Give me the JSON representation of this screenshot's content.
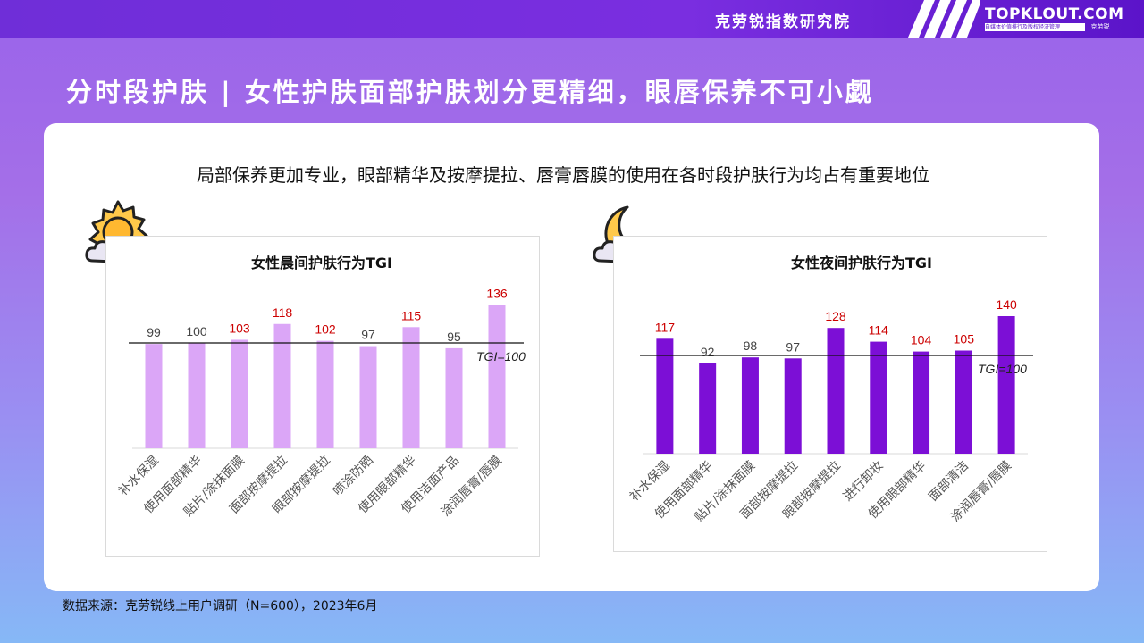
{
  "header": {
    "brand_cn": "克劳锐指数研究院",
    "logo": "TOPKLOUT.COM",
    "logo_tagline": "自媒体价值排行及版权经济管理",
    "logo_sub": "克劳锐"
  },
  "page_title": "分时段护肤 | 女性护肤面部护肤划分更精细，眼唇保养不可小觑",
  "subtitle": "局部保养更加专业，眼部精华及按摩提拉、唇膏唇膜的使用在各时段护肤行为均占有重要地位",
  "icons": {
    "morning": "sun-cloud-icon",
    "night": "moon-cloud-icon"
  },
  "colors": {
    "morning_bar": "#dba6f7",
    "night_bar": "#7c0fd6",
    "highlight_label": "#cc0000",
    "normal_label": "#444444",
    "baseline": "#111111"
  },
  "chart_data": [
    {
      "type": "bar",
      "title": "女性晨间护肤行为TGI",
      "categories": [
        "补水保湿",
        "使用面部精华",
        "贴片/涂抹面膜",
        "面部按摩提拉",
        "眼部按摩提拉",
        "喷涂防晒",
        "使用眼部精华",
        "使用洁面产品",
        "涂润唇膏/唇膜"
      ],
      "values": [
        99,
        100,
        103,
        118,
        102,
        97,
        115,
        95,
        136
      ],
      "highlighted": [
        false,
        false,
        true,
        true,
        true,
        false,
        true,
        false,
        true
      ],
      "reference_line": {
        "value": 100,
        "label": "TGI=100"
      },
      "ylim": [
        0,
        140
      ],
      "xlabel": "",
      "ylabel": ""
    },
    {
      "type": "bar",
      "title": "女性夜间护肤行为TGI",
      "categories": [
        "补水保湿",
        "使用面部精华",
        "贴片/涂抹面膜",
        "面部按摩提拉",
        "眼部按摩提拉",
        "进行卸妆",
        "使用眼部精华",
        "面部清洁",
        "涂润唇膏/唇膜"
      ],
      "values": [
        117,
        92,
        98,
        97,
        128,
        114,
        104,
        105,
        140
      ],
      "highlighted": [
        true,
        false,
        false,
        false,
        true,
        true,
        true,
        true,
        true
      ],
      "reference_line": {
        "value": 100,
        "label": "TGI=100"
      },
      "ylim": [
        0,
        140
      ],
      "xlabel": "",
      "ylabel": ""
    }
  ],
  "source": "数据来源：克劳锐线上用户调研（N=600），2023年6月"
}
